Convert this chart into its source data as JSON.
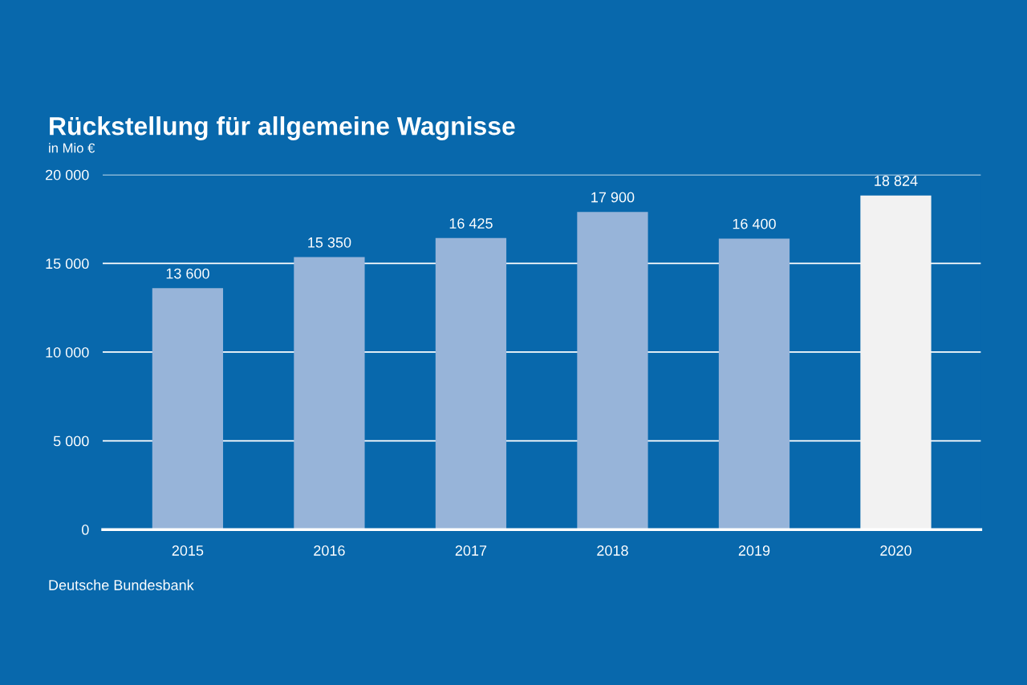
{
  "chart_data": {
    "type": "bar",
    "title": "Rückstellung für allgemeine Wagnisse",
    "subtitle": "in Mio €",
    "categories": [
      "2015",
      "2016",
      "2017",
      "2018",
      "2019",
      "2020"
    ],
    "values": [
      13600,
      15350,
      16425,
      17900,
      16400,
      18824
    ],
    "colors": [
      "#97b4d9",
      "#97b4d9",
      "#97b4d9",
      "#97b4d9",
      "#97b4d9",
      "#f2f2f2"
    ],
    "value_labels": [
      "13 600",
      "15 350",
      "16 425",
      "17 900",
      "16 400",
      "18 824"
    ],
    "ylim": [
      0,
      20000
    ],
    "yticks": [
      {
        "value": 0,
        "label": "0"
      },
      {
        "value": 5000,
        "label": "5 000"
      },
      {
        "value": 10000,
        "label": "10 000"
      },
      {
        "value": 15000,
        "label": "15 000"
      },
      {
        "value": 20000,
        "label": "20 000"
      }
    ],
    "grid": "y",
    "annotations": [
      "Deutsche Bundesbank"
    ]
  }
}
